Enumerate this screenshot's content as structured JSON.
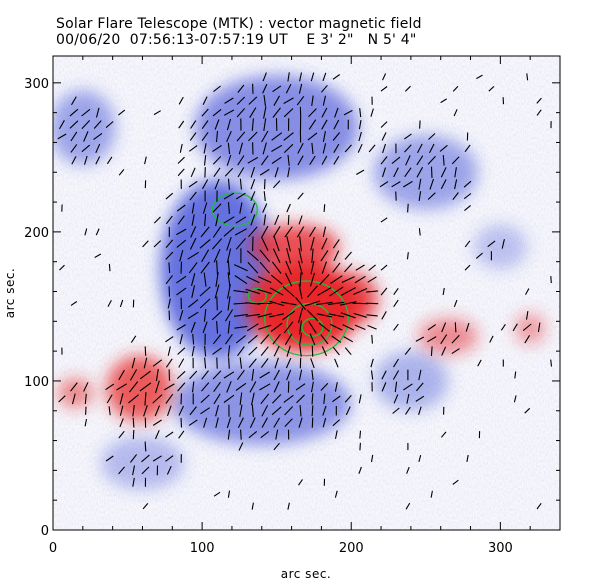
{
  "header": {
    "title": "Solar Flare Telescope (MTK) : vector magnetic field",
    "subtitle": "00/06/20  07:56:13-07:57:19 UT    E 3' 2\"   N 5' 4\""
  },
  "colors": {
    "positive_polarity": "#e8262a",
    "negative_polarity": "#3b49d6",
    "contour": "#1bbf3a",
    "vectors": "#000000",
    "frame": "#000000"
  },
  "axes": {
    "xlabel": "arc sec.",
    "ylabel": "arc sec.",
    "xlim": [
      0,
      340
    ],
    "ylim": [
      0,
      318
    ],
    "xticks": [
      0,
      100,
      200,
      300
    ],
    "yticks": [
      0,
      100,
      200,
      300
    ]
  },
  "magnetogram": {
    "positive_regions": [
      {
        "x": 168,
        "y": 150,
        "rx": 38,
        "ry": 30,
        "strength": 1.0
      },
      {
        "x": 162,
        "y": 190,
        "rx": 30,
        "ry": 15,
        "strength": 0.8
      },
      {
        "x": 200,
        "y": 155,
        "rx": 18,
        "ry": 18,
        "strength": 0.8
      },
      {
        "x": 58,
        "y": 95,
        "rx": 22,
        "ry": 22,
        "strength": 0.75
      },
      {
        "x": 15,
        "y": 92,
        "rx": 12,
        "ry": 10,
        "strength": 0.55
      },
      {
        "x": 265,
        "y": 130,
        "rx": 20,
        "ry": 12,
        "strength": 0.5
      },
      {
        "x": 320,
        "y": 135,
        "rx": 10,
        "ry": 10,
        "strength": 0.45
      }
    ],
    "negative_regions": [
      {
        "x": 110,
        "y": 175,
        "rx": 38,
        "ry": 60,
        "strength": 0.9
      },
      {
        "x": 150,
        "y": 270,
        "rx": 55,
        "ry": 35,
        "strength": 0.7
      },
      {
        "x": 250,
        "y": 240,
        "rx": 35,
        "ry": 25,
        "strength": 0.55
      },
      {
        "x": 140,
        "y": 85,
        "rx": 60,
        "ry": 28,
        "strength": 0.65
      },
      {
        "x": 240,
        "y": 100,
        "rx": 25,
        "ry": 20,
        "strength": 0.45
      },
      {
        "x": 20,
        "y": 270,
        "rx": 22,
        "ry": 25,
        "strength": 0.55
      },
      {
        "x": 60,
        "y": 45,
        "rx": 28,
        "ry": 18,
        "strength": 0.4
      },
      {
        "x": 300,
        "y": 190,
        "rx": 18,
        "ry": 15,
        "strength": 0.35
      }
    ],
    "contours": [
      {
        "x": 170,
        "y": 142,
        "rx": 28,
        "ry": 25
      },
      {
        "x": 172,
        "y": 138,
        "rx": 15,
        "ry": 14
      },
      {
        "x": 174,
        "y": 136,
        "rx": 7,
        "ry": 6
      },
      {
        "x": 137,
        "y": 157,
        "rx": 6,
        "ry": 5
      },
      {
        "x": 122,
        "y": 215,
        "rx": 15,
        "ry": 11
      }
    ]
  }
}
